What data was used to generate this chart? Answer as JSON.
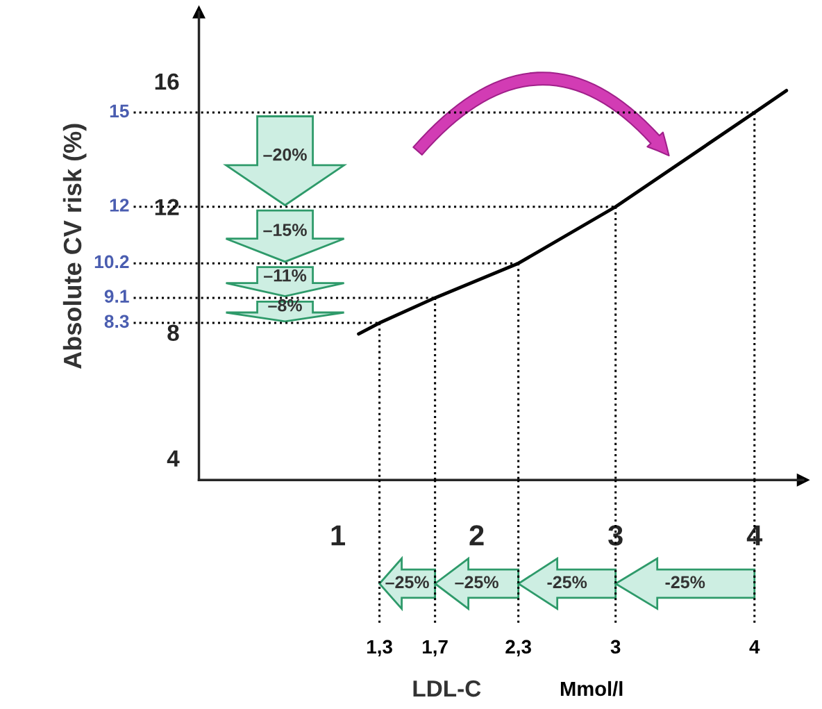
{
  "chart_data": {
    "type": "line",
    "ylabel": "Absolute CV risk (%)",
    "xlim": [
      0,
      4.35
    ],
    "ylim": [
      3.3,
      18.2
    ],
    "xticks": [
      1,
      2,
      3,
      4
    ],
    "yticks": [
      4,
      8,
      12,
      16
    ],
    "series": [
      {
        "x": [
          1.15,
          1.3,
          1.7,
          2.3,
          3,
          4,
          4.23
        ],
        "values": [
          7.95,
          8.3,
          9.1,
          10.2,
          12,
          15,
          15.7
        ],
        "color": "#000000"
      }
    ],
    "ref_lines": [
      {
        "axis": "y",
        "value": 15,
        "label": "15",
        "color": "#000000",
        "line_style": "dotted"
      },
      {
        "axis": "y",
        "value": 12,
        "label": "12",
        "color": "#000000",
        "line_style": "dotted"
      },
      {
        "axis": "y",
        "value": 10.2,
        "label": "10.2",
        "color": "#000000",
        "line_style": "dotted"
      },
      {
        "axis": "y",
        "value": 9.1,
        "label": "9.1",
        "color": "#000000",
        "line_style": "dotted"
      },
      {
        "axis": "y",
        "value": 8.3,
        "label": "8.3",
        "color": "#000000",
        "line_style": "dotted"
      },
      {
        "axis": "x",
        "value": 1.3,
        "label": "1,3",
        "color": "#000000",
        "line_style": "dotted"
      },
      {
        "axis": "x",
        "value": 1.7,
        "label": "1,7",
        "color": "#000000",
        "line_style": "dotted"
      },
      {
        "axis": "x",
        "value": 2.3,
        "label": "2,3",
        "color": "#000000",
        "line_style": "dotted"
      },
      {
        "axis": "x",
        "value": 3,
        "label": "3",
        "color": "#000000",
        "line_style": "dotted"
      },
      {
        "axis": "x",
        "value": 4,
        "label": "4",
        "color": "#000000",
        "line_style": "dotted"
      }
    ],
    "annotations": [
      "–20%",
      "–15%",
      "–11%",
      "–8%",
      "–25%",
      "–25%",
      "-25%",
      "-25%",
      "LDL-C",
      "Mmol/l"
    ],
    "grid": false,
    "marker": "none",
    "line_style": "solid"
  }
}
